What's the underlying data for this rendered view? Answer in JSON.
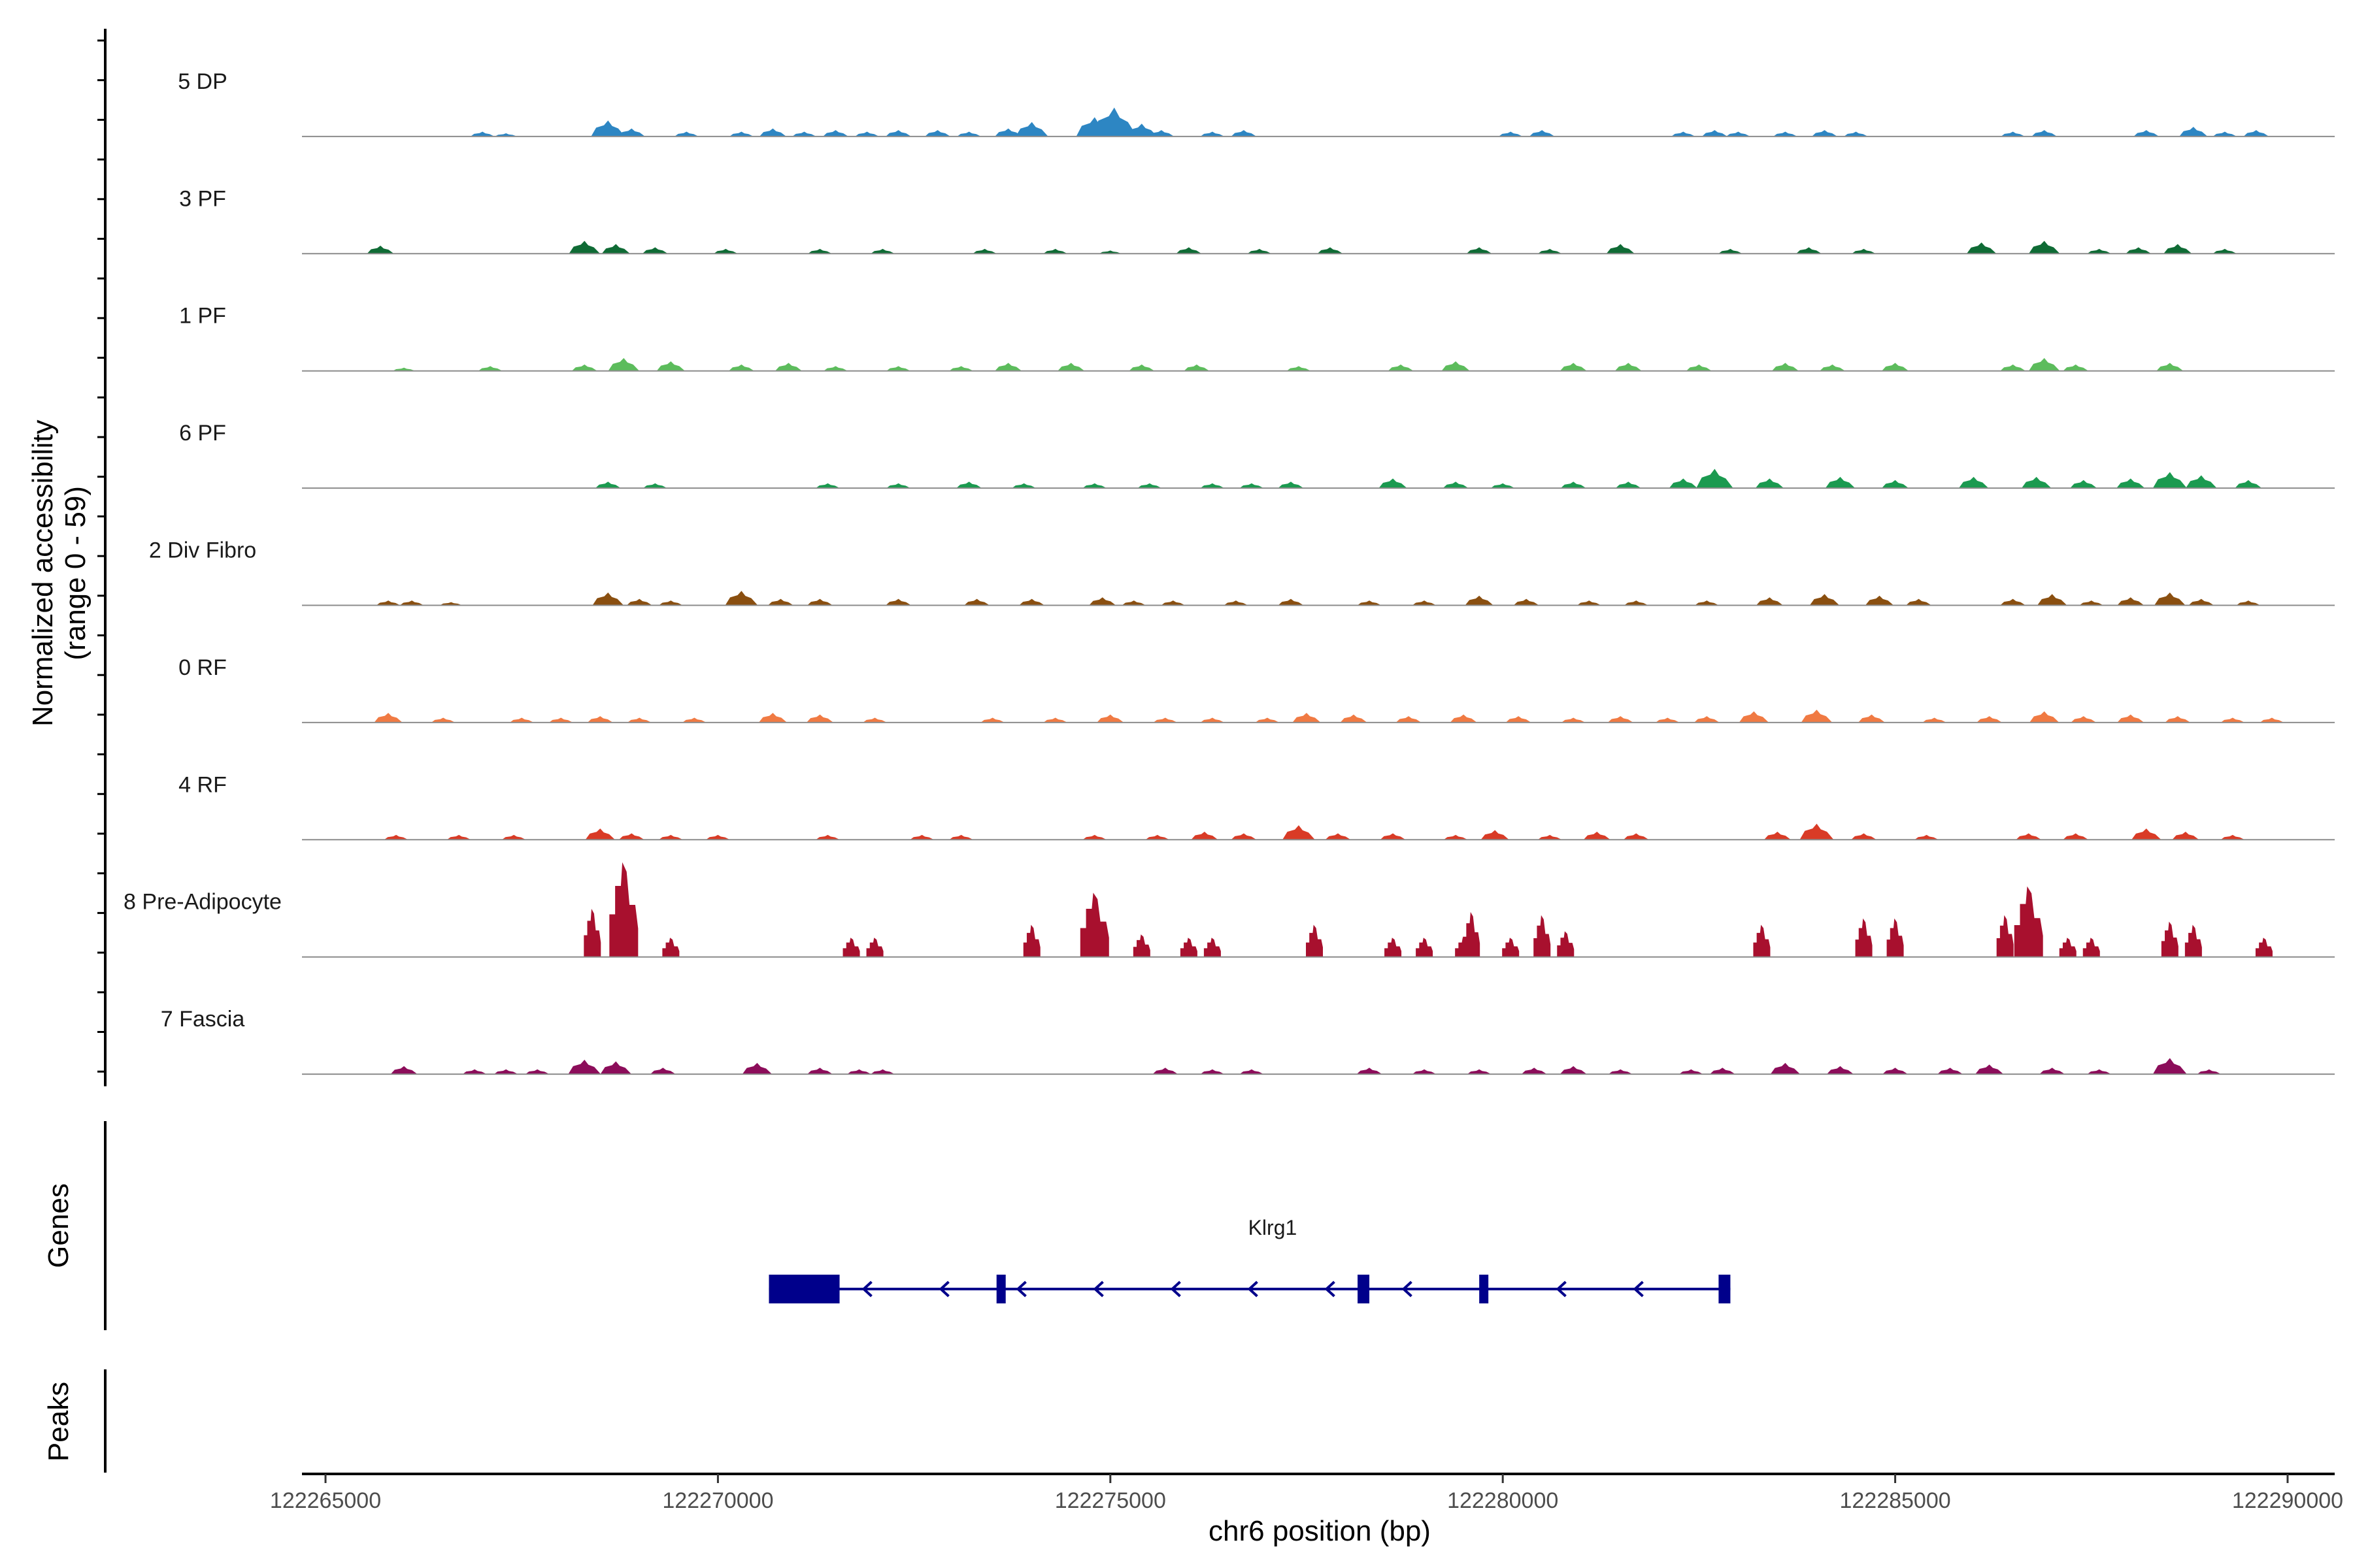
{
  "chart_data": {
    "type": "area",
    "title": "",
    "ylabel": "Normalized accessibility\n(range 0 - 59)",
    "ylabel_lines": [
      "Normalized accessibility",
      "(range 0 - 59)"
    ],
    "xlabel": "chr6 position (bp)",
    "xlim": [
      122264700,
      122290600
    ],
    "ylim": [
      0,
      59
    ],
    "xticks": [
      122265000,
      122270000,
      122275000,
      122280000,
      122285000,
      122290000
    ],
    "xtick_labels": [
      "122265000",
      "122270000",
      "122275000",
      "122280000",
      "122285000",
      "122290000"
    ],
    "panel_labels": [
      "Genes",
      "Peaks"
    ],
    "colors": {
      "5 DP": "#2d86c3",
      "3 PF": "#0f6b35",
      "1 PF": "#5cbc5c",
      "6 PF": "#1b9a50",
      "2 Div Fibro": "#8a4f10",
      "0 RF": "#f07a43",
      "4 RF": "#d93b26",
      "8 Pre-Adipocyte": "#a8102e",
      "7 Fascia": "#8c0d5a",
      "gene": "#00008b",
      "baseline": "#8c8c8c"
    },
    "series": [
      {
        "name": "5 DP",
        "peaks": [
          [
            122267000,
            3
          ],
          [
            122267300,
            2
          ],
          [
            122268600,
            10
          ],
          [
            122268900,
            5
          ],
          [
            122269600,
            3
          ],
          [
            122270300,
            3
          ],
          [
            122270700,
            5
          ],
          [
            122271100,
            3
          ],
          [
            122271500,
            4
          ],
          [
            122271900,
            3
          ],
          [
            122272300,
            4
          ],
          [
            122272800,
            4
          ],
          [
            122273200,
            3
          ],
          [
            122273700,
            5
          ],
          [
            122274000,
            9
          ],
          [
            122274800,
            12
          ],
          [
            122275050,
            18
          ],
          [
            122275400,
            8
          ],
          [
            122275650,
            4
          ],
          [
            122276300,
            3
          ],
          [
            122276700,
            4
          ],
          [
            122280100,
            3
          ],
          [
            122280500,
            4
          ],
          [
            122282300,
            3
          ],
          [
            122282700,
            4
          ],
          [
            122283000,
            3
          ],
          [
            122283600,
            3
          ],
          [
            122284100,
            4
          ],
          [
            122284500,
            3
          ],
          [
            122286500,
            3
          ],
          [
            122286900,
            4
          ],
          [
            122288200,
            4
          ],
          [
            122288800,
            6
          ],
          [
            122289200,
            3
          ],
          [
            122289600,
            4
          ]
        ]
      },
      {
        "name": "3 PF",
        "peaks": [
          [
            122265700,
            5
          ],
          [
            122268300,
            8
          ],
          [
            122268700,
            6
          ],
          [
            122269200,
            4
          ],
          [
            122270100,
            3
          ],
          [
            122271300,
            3
          ],
          [
            122272100,
            3
          ],
          [
            122273400,
            3
          ],
          [
            122274300,
            3
          ],
          [
            122275000,
            2
          ],
          [
            122276000,
            4
          ],
          [
            122276900,
            3
          ],
          [
            122277800,
            4
          ],
          [
            122279700,
            4
          ],
          [
            122280600,
            3
          ],
          [
            122281500,
            6
          ],
          [
            122282900,
            3
          ],
          [
            122283900,
            4
          ],
          [
            122284600,
            3
          ],
          [
            122286100,
            7
          ],
          [
            122286900,
            8
          ],
          [
            122287600,
            3
          ],
          [
            122288100,
            4
          ],
          [
            122288600,
            6
          ],
          [
            122289200,
            3
          ]
        ]
      },
      {
        "name": "1 PF",
        "peaks": [
          [
            122266000,
            2
          ],
          [
            122267100,
            3
          ],
          [
            122268300,
            4
          ],
          [
            122268800,
            8
          ],
          [
            122269400,
            6
          ],
          [
            122270300,
            4
          ],
          [
            122270900,
            5
          ],
          [
            122271500,
            3
          ],
          [
            122272300,
            3
          ],
          [
            122273100,
            3
          ],
          [
            122273700,
            5
          ],
          [
            122274500,
            5
          ],
          [
            122275400,
            4
          ],
          [
            122276100,
            4
          ],
          [
            122277400,
            3
          ],
          [
            122278700,
            4
          ],
          [
            122279400,
            6
          ],
          [
            122280900,
            5
          ],
          [
            122281600,
            5
          ],
          [
            122282500,
            4
          ],
          [
            122283600,
            5
          ],
          [
            122284200,
            4
          ],
          [
            122285000,
            5
          ],
          [
            122286500,
            4
          ],
          [
            122286900,
            8
          ],
          [
            122287300,
            4
          ],
          [
            122288500,
            5
          ]
        ]
      },
      {
        "name": "6 PF",
        "peaks": [
          [
            122268600,
            4
          ],
          [
            122269200,
            3
          ],
          [
            122271400,
            3
          ],
          [
            122272300,
            3
          ],
          [
            122273200,
            4
          ],
          [
            122273900,
            3
          ],
          [
            122274800,
            3
          ],
          [
            122275500,
            3
          ],
          [
            122276300,
            3
          ],
          [
            122276800,
            3
          ],
          [
            122277300,
            4
          ],
          [
            122278600,
            6
          ],
          [
            122279400,
            4
          ],
          [
            122280000,
            3
          ],
          [
            122280900,
            4
          ],
          [
            122281600,
            4
          ],
          [
            122282300,
            6
          ],
          [
            122282700,
            12
          ],
          [
            122283400,
            6
          ],
          [
            122284300,
            7
          ],
          [
            122285000,
            5
          ],
          [
            122286000,
            7
          ],
          [
            122286800,
            7
          ],
          [
            122287400,
            5
          ],
          [
            122288000,
            6
          ],
          [
            122288500,
            10
          ],
          [
            122288900,
            8
          ],
          [
            122289500,
            5
          ]
        ]
      },
      {
        "name": "2 Div Fibro",
        "peaks": [
          [
            122265800,
            3
          ],
          [
            122266100,
            3
          ],
          [
            122266600,
            2
          ],
          [
            122268600,
            8
          ],
          [
            122269000,
            4
          ],
          [
            122269400,
            3
          ],
          [
            122270300,
            9
          ],
          [
            122270800,
            4
          ],
          [
            122271300,
            4
          ],
          [
            122272300,
            4
          ],
          [
            122273300,
            4
          ],
          [
            122274000,
            4
          ],
          [
            122274900,
            5
          ],
          [
            122275300,
            3
          ],
          [
            122275800,
            3
          ],
          [
            122276600,
            3
          ],
          [
            122277300,
            4
          ],
          [
            122278300,
            3
          ],
          [
            122279000,
            3
          ],
          [
            122279700,
            6
          ],
          [
            122280300,
            4
          ],
          [
            122281100,
            3
          ],
          [
            122281700,
            3
          ],
          [
            122282600,
            3
          ],
          [
            122283400,
            5
          ],
          [
            122284100,
            7
          ],
          [
            122284800,
            6
          ],
          [
            122285300,
            4
          ],
          [
            122286500,
            4
          ],
          [
            122287000,
            7
          ],
          [
            122287500,
            3
          ],
          [
            122288000,
            5
          ],
          [
            122288500,
            8
          ],
          [
            122288900,
            4
          ],
          [
            122289500,
            3
          ]
        ]
      },
      {
        "name": "0 RF",
        "peaks": [
          [
            122265800,
            6
          ],
          [
            122266500,
            3
          ],
          [
            122267500,
            3
          ],
          [
            122268000,
            3
          ],
          [
            122268500,
            4
          ],
          [
            122269000,
            3
          ],
          [
            122269700,
            3
          ],
          [
            122270700,
            6
          ],
          [
            122271300,
            5
          ],
          [
            122272000,
            3
          ],
          [
            122273500,
            3
          ],
          [
            122274300,
            3
          ],
          [
            122275000,
            5
          ],
          [
            122275700,
            3
          ],
          [
            122276300,
            3
          ],
          [
            122277000,
            3
          ],
          [
            122277500,
            6
          ],
          [
            122278100,
            5
          ],
          [
            122278800,
            4
          ],
          [
            122279500,
            5
          ],
          [
            122280200,
            4
          ],
          [
            122280900,
            3
          ],
          [
            122281500,
            4
          ],
          [
            122282100,
            3
          ],
          [
            122282600,
            4
          ],
          [
            122283200,
            7
          ],
          [
            122284000,
            8
          ],
          [
            122284700,
            5
          ],
          [
            122285500,
            3
          ],
          [
            122286200,
            4
          ],
          [
            122286900,
            7
          ],
          [
            122287400,
            4
          ],
          [
            122288000,
            5
          ],
          [
            122288600,
            4
          ],
          [
            122289300,
            3
          ],
          [
            122289800,
            3
          ]
        ]
      },
      {
        "name": "4 RF",
        "peaks": [
          [
            122265900,
            3
          ],
          [
            122266700,
            3
          ],
          [
            122267400,
            3
          ],
          [
            122268500,
            7
          ],
          [
            122268900,
            4
          ],
          [
            122269400,
            3
          ],
          [
            122270000,
            3
          ],
          [
            122271400,
            3
          ],
          [
            122272600,
            3
          ],
          [
            122273100,
            3
          ],
          [
            122274800,
            3
          ],
          [
            122275600,
            3
          ],
          [
            122276200,
            5
          ],
          [
            122276700,
            4
          ],
          [
            122277400,
            9
          ],
          [
            122277900,
            4
          ],
          [
            122278600,
            4
          ],
          [
            122279400,
            3
          ],
          [
            122279900,
            6
          ],
          [
            122280600,
            3
          ],
          [
            122281200,
            5
          ],
          [
            122281700,
            4
          ],
          [
            122283500,
            5
          ],
          [
            122284000,
            10
          ],
          [
            122284600,
            4
          ],
          [
            122285400,
            3
          ],
          [
            122286700,
            4
          ],
          [
            122287300,
            4
          ],
          [
            122288200,
            7
          ],
          [
            122288700,
            5
          ],
          [
            122289300,
            3
          ]
        ]
      },
      {
        "name": "8 Pre-Adipocyte",
        "peaks": [
          [
            122268400,
            30
          ],
          [
            122268800,
            59
          ],
          [
            122269400,
            12
          ],
          [
            122271700,
            12
          ],
          [
            122272000,
            12
          ],
          [
            122274000,
            20
          ],
          [
            122274800,
            40
          ],
          [
            122275400,
            14
          ],
          [
            122276000,
            12
          ],
          [
            122276300,
            12
          ],
          [
            122277600,
            20
          ],
          [
            122278600,
            12
          ],
          [
            122279000,
            12
          ],
          [
            122279500,
            12
          ],
          [
            122279600,
            28
          ],
          [
            122280100,
            12
          ],
          [
            122280500,
            26
          ],
          [
            122280800,
            16
          ],
          [
            122283300,
            20
          ],
          [
            122284600,
            24
          ],
          [
            122285000,
            24
          ],
          [
            122286400,
            26
          ],
          [
            122286700,
            44
          ],
          [
            122287200,
            12
          ],
          [
            122287500,
            12
          ],
          [
            122288500,
            22
          ],
          [
            122288800,
            20
          ],
          [
            122289700,
            12
          ]
        ]
      },
      {
        "name": "7 Fascia",
        "peaks": [
          [
            122266000,
            5
          ],
          [
            122266900,
            3
          ],
          [
            122267300,
            3
          ],
          [
            122267700,
            3
          ],
          [
            122268300,
            9
          ],
          [
            122268700,
            8
          ],
          [
            122269300,
            4
          ],
          [
            122270500,
            7
          ],
          [
            122271300,
            4
          ],
          [
            122271800,
            3
          ],
          [
            122272100,
            3
          ],
          [
            122275700,
            4
          ],
          [
            122276300,
            3
          ],
          [
            122276800,
            3
          ],
          [
            122278300,
            4
          ],
          [
            122279000,
            3
          ],
          [
            122279700,
            3
          ],
          [
            122280400,
            4
          ],
          [
            122280900,
            5
          ],
          [
            122281500,
            3
          ],
          [
            122282400,
            3
          ],
          [
            122282800,
            4
          ],
          [
            122283600,
            7
          ],
          [
            122284300,
            5
          ],
          [
            122285000,
            4
          ],
          [
            122285700,
            4
          ],
          [
            122286200,
            6
          ],
          [
            122287000,
            4
          ],
          [
            122287600,
            3
          ],
          [
            122288500,
            10
          ],
          [
            122289000,
            3
          ]
        ]
      }
    ],
    "gene": {
      "name": "Klrg1",
      "strand": "-",
      "start": 122270650,
      "end": 122282900,
      "exons": [
        [
          122270650,
          122271550
        ],
        [
          122273550,
          122273650
        ],
        [
          122278150,
          122278300
        ],
        [
          122279700,
          122279800
        ],
        [
          122282750,
          122282900
        ]
      ]
    }
  }
}
